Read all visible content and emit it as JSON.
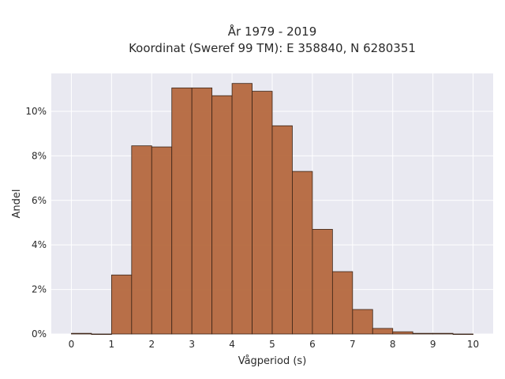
{
  "chart_data": {
    "type": "bar",
    "title_line1": "År 1979 - 2019",
    "title_line2": "Koordinat (Sweref 99 TM): E 358840, N 6280351",
    "xlabel": "Vågperiod (s)",
    "ylabel": "Andel",
    "xlim": [
      -0.5,
      10.5
    ],
    "ylim": [
      0,
      11.7
    ],
    "bin_width": 0.5,
    "x_ticks": [
      0,
      1,
      2,
      3,
      4,
      5,
      6,
      7,
      8,
      9,
      10
    ],
    "y_ticks": [
      0,
      2,
      4,
      6,
      8,
      10
    ],
    "y_tick_labels": [
      "0%",
      "2%",
      "4%",
      "6%",
      "8%",
      "10%"
    ],
    "bins": [
      {
        "x0": 0.0,
        "x1": 0.5,
        "value": 0.03
      },
      {
        "x0": 0.5,
        "x1": 1.0,
        "value": 0.0
      },
      {
        "x0": 1.0,
        "x1": 1.5,
        "value": 2.65
      },
      {
        "x0": 1.5,
        "x1": 2.0,
        "value": 8.45
      },
      {
        "x0": 2.0,
        "x1": 2.5,
        "value": 8.4
      },
      {
        "x0": 2.5,
        "x1": 3.0,
        "value": 11.05
      },
      {
        "x0": 3.0,
        "x1": 3.5,
        "value": 11.05
      },
      {
        "x0": 3.5,
        "x1": 4.0,
        "value": 10.7
      },
      {
        "x0": 4.0,
        "x1": 4.5,
        "value": 11.25
      },
      {
        "x0": 4.5,
        "x1": 5.0,
        "value": 10.9
      },
      {
        "x0": 5.0,
        "x1": 5.5,
        "value": 9.35
      },
      {
        "x0": 5.5,
        "x1": 6.0,
        "value": 7.3
      },
      {
        "x0": 6.0,
        "x1": 6.5,
        "value": 4.7
      },
      {
        "x0": 6.5,
        "x1": 7.0,
        "value": 2.8
      },
      {
        "x0": 7.0,
        "x1": 7.5,
        "value": 1.1
      },
      {
        "x0": 7.5,
        "x1": 8.0,
        "value": 0.25
      },
      {
        "x0": 8.0,
        "x1": 8.5,
        "value": 0.1
      },
      {
        "x0": 8.5,
        "x1": 9.0,
        "value": 0.03
      },
      {
        "x0": 9.0,
        "x1": 9.5,
        "value": 0.03
      },
      {
        "x0": 9.5,
        "x1": 10.0,
        "value": 0.0
      }
    ],
    "bar_color": "#b5683e",
    "bar_edge_color": "#3a2417",
    "plot_bg": "#e9e9f1",
    "grid_color": "#ffffff",
    "grid": true
  }
}
